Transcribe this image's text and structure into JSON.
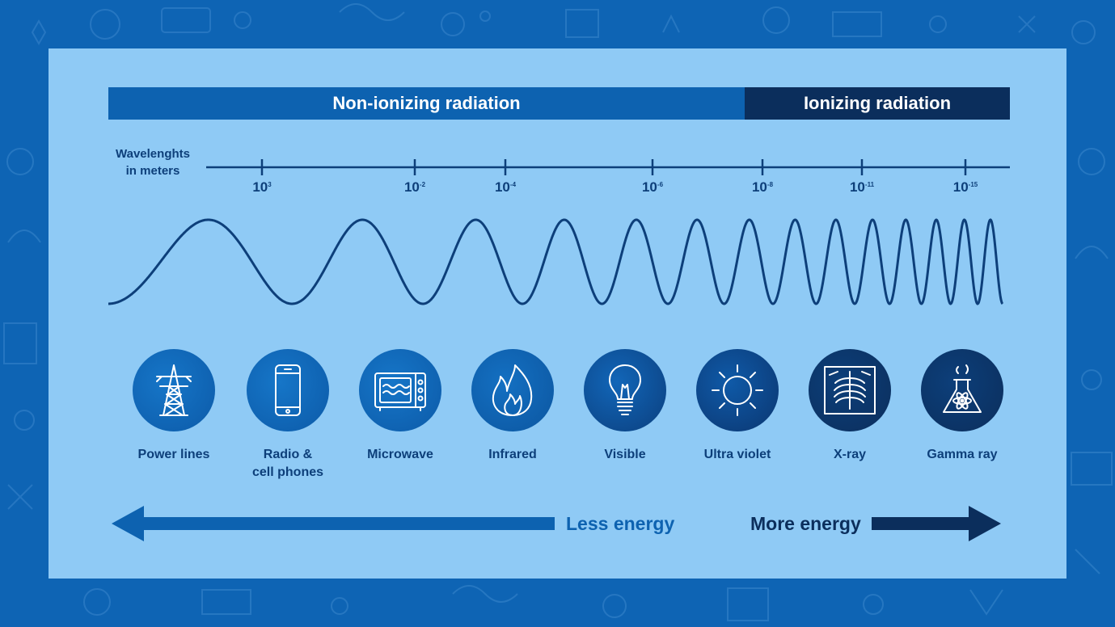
{
  "bands": {
    "non_ionizing": "Non-ionizing radiation",
    "ionizing": "Ionizing radiation"
  },
  "axis": {
    "label_line1": "Wavelenghts",
    "label_line2": "in meters",
    "ticks": [
      {
        "base": "10",
        "exp": "3"
      },
      {
        "base": "10",
        "exp": "-2"
      },
      {
        "base": "10",
        "exp": "-4"
      },
      {
        "base": "10",
        "exp": "-6"
      },
      {
        "base": "10",
        "exp": "-8"
      },
      {
        "base": "10",
        "exp": "-11"
      },
      {
        "base": "10",
        "exp": "-15"
      }
    ]
  },
  "sources": [
    {
      "line1": "Power lines",
      "line2": "",
      "icon": "power-tower-icon"
    },
    {
      "line1": "Radio &",
      "line2": "cell phones",
      "icon": "cell-phone-icon"
    },
    {
      "line1": "Microwave",
      "line2": "",
      "icon": "microwave-icon"
    },
    {
      "line1": "Infrared",
      "line2": "",
      "icon": "flame-icon"
    },
    {
      "line1": "Visible",
      "line2": "",
      "icon": "light-bulb-icon"
    },
    {
      "line1": "Ultra violet",
      "line2": "",
      "icon": "sun-icon"
    },
    {
      "line1": "X-ray",
      "line2": "",
      "icon": "xray-chest-icon"
    },
    {
      "line1": "Gamma ray",
      "line2": "",
      "icon": "radioactive-flask-icon"
    }
  ],
  "energy": {
    "less": "Less energy",
    "more": "More energy"
  },
  "colors": {
    "background": "#0e64b4",
    "panel": "#8fcaf5",
    "non_ionizing": "#0d62b0",
    "ionizing": "#0b2e5c",
    "text_dark": "#0d3f7a"
  }
}
